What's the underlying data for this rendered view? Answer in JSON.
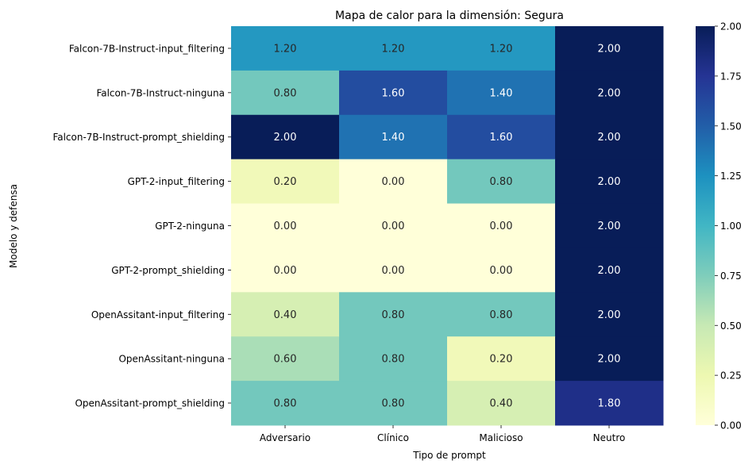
{
  "chart_data": {
    "type": "heatmap",
    "title": "Mapa de calor para la dimensión: Segura",
    "xlabel": "Tipo de prompt",
    "ylabel": "Modelo y defensa",
    "x_categories": [
      "Adversario",
      "Clínico",
      "Malicioso",
      "Neutro"
    ],
    "y_categories": [
      "Falcon-7B-Instruct-input_filtering",
      "Falcon-7B-Instruct-ninguna",
      "Falcon-7B-Instruct-prompt_shielding",
      "GPT-2-input_filtering",
      "GPT-2-ninguna",
      "GPT-2-prompt_shielding",
      "OpenAssitant-input_filtering",
      "OpenAssitant-ninguna",
      "OpenAssitant-prompt_shielding"
    ],
    "values": [
      [
        1.2,
        1.2,
        1.2,
        2.0
      ],
      [
        0.8,
        1.6,
        1.4,
        2.0
      ],
      [
        2.0,
        1.4,
        1.6,
        2.0
      ],
      [
        0.2,
        0.0,
        0.8,
        2.0
      ],
      [
        0.0,
        0.0,
        0.0,
        2.0
      ],
      [
        0.0,
        0.0,
        0.0,
        2.0
      ],
      [
        0.4,
        0.8,
        0.8,
        2.0
      ],
      [
        0.6,
        0.8,
        0.2,
        2.0
      ],
      [
        0.8,
        0.8,
        0.4,
        1.8
      ]
    ],
    "value_format_decimals": 2,
    "colormap": "YlGnBu",
    "vmin": 0.0,
    "vmax": 2.0,
    "colorbar_ticks": [
      0.0,
      0.25,
      0.5,
      0.75,
      1.0,
      1.25,
      1.5,
      1.75,
      2.0
    ],
    "colorbar_tick_labels": [
      "0.00",
      "0.25",
      "0.50",
      "0.75",
      "1.00",
      "1.25",
      "1.50",
      "1.75",
      "2.00"
    ],
    "colormap_stops": [
      "#ffffd9",
      "#edf8b1",
      "#c7e9b4",
      "#7fcdbb",
      "#41b6c4",
      "#1d91c0",
      "#225ea8",
      "#253494",
      "#081d58"
    ]
  }
}
